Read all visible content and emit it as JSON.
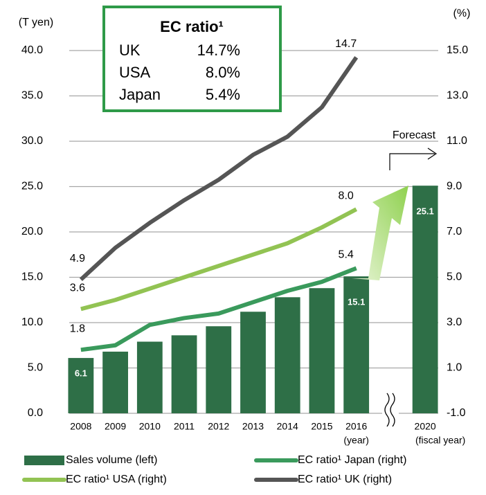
{
  "chart_data": {
    "type": "bar",
    "left_axis_label": "(T yen)",
    "right_axis_label": "(%)",
    "categories": [
      "2008",
      "2009",
      "2010",
      "2011",
      "2012",
      "2013",
      "2014",
      "2015",
      "2016",
      "2020"
    ],
    "x_break_before_last": true,
    "x_notes": [
      {
        "category": 8,
        "label": "(year)"
      },
      {
        "category": 9,
        "label": "(fiscal year)"
      }
    ],
    "forecast_label": "Forecast",
    "ylim": [
      0,
      40
    ],
    "yticks": [
      {
        "value": 0,
        "label": "0.0"
      },
      {
        "value": 5,
        "label": "5.0"
      },
      {
        "value": 10,
        "label": "10.0"
      },
      {
        "value": 15,
        "label": "15.0"
      },
      {
        "value": 20,
        "label": "20.0"
      },
      {
        "value": 25,
        "label": "25.0"
      },
      {
        "value": 30,
        "label": "30.0"
      },
      {
        "value": 35,
        "label": "35.0"
      },
      {
        "value": 40,
        "label": "40.0"
      }
    ],
    "y2lim": [
      -1,
      15
    ],
    "y2ticks": [
      {
        "value": -1,
        "label": "-1.0"
      },
      {
        "value": 1,
        "label": "1.0"
      },
      {
        "value": 3,
        "label": "3.0"
      },
      {
        "value": 5,
        "label": "5.0"
      },
      {
        "value": 7,
        "label": "7.0"
      },
      {
        "value": 9,
        "label": "9.0"
      },
      {
        "value": 11,
        "label": "11.0"
      },
      {
        "value": 13,
        "label": "13.0"
      },
      {
        "value": 15,
        "label": "15.0"
      }
    ],
    "grid": true,
    "series": [
      {
        "name": "Sales volume (left)",
        "type": "bar",
        "color": "#2e6f47",
        "values": [
          6.1,
          6.8,
          7.9,
          8.6,
          9.6,
          11.2,
          12.8,
          13.8,
          15.1,
          25.1
        ],
        "value_labels": [
          "6.1",
          null,
          null,
          null,
          null,
          null,
          null,
          null,
          "15.1",
          "25.1"
        ]
      },
      {
        "name": "EC ratio¹ Japan (right)",
        "type": "line",
        "axis": "y2",
        "color": "#3a9a5c",
        "values": [
          1.8,
          2.0,
          2.9,
          3.2,
          3.4,
          3.9,
          4.4,
          4.8,
          5.4,
          null
        ],
        "value_labels": [
          "1.8",
          null,
          null,
          null,
          null,
          null,
          null,
          null,
          "5.4",
          null
        ]
      },
      {
        "name": "EC ratio¹ USA (right)",
        "type": "line",
        "axis": "y2",
        "color": "#92c353",
        "values": [
          3.6,
          4.0,
          4.5,
          5.0,
          5.5,
          6.0,
          6.5,
          7.2,
          8.0,
          null
        ],
        "value_labels": [
          "3.6",
          null,
          null,
          null,
          null,
          null,
          null,
          null,
          "8.0",
          null
        ]
      },
      {
        "name": "EC ratio¹ UK (right)",
        "type": "line",
        "axis": "y2",
        "color": "#555555",
        "values": [
          4.9,
          6.3,
          7.4,
          8.4,
          9.3,
          10.4,
          11.2,
          12.5,
          14.7,
          null
        ],
        "value_labels": [
          "4.9",
          null,
          null,
          null,
          null,
          null,
          null,
          null,
          "14.7",
          null
        ]
      }
    ],
    "inset": {
      "title": "EC ratio¹",
      "rows": [
        [
          "UK",
          "14.7%"
        ],
        [
          "USA",
          "8.0%"
        ],
        [
          "Japan",
          "5.4%"
        ]
      ]
    }
  }
}
